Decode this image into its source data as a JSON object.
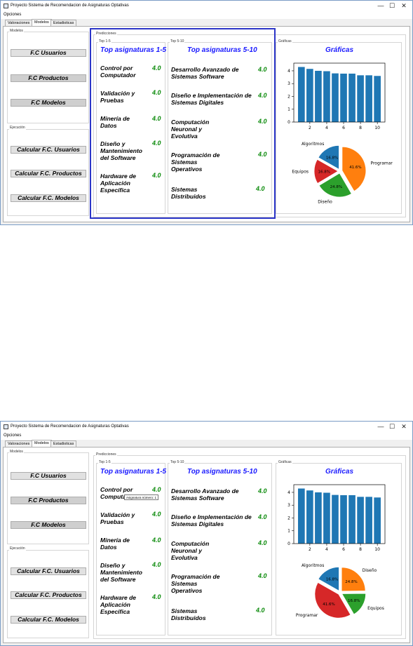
{
  "window": {
    "title": "Proyecto Sistema de Recomendacion de Asignaturas Optativas",
    "menu": "Opciones",
    "minimize": "—",
    "maximize": "☐",
    "close": "✕"
  },
  "tabs": [
    "Valoraciones",
    "Modelos",
    "Estadisticas"
  ],
  "modelos": {
    "label": "Modelos",
    "buttons": [
      "F.C Usuarios",
      "F.C Productos",
      "F.C Modelos"
    ]
  },
  "ejecucion": {
    "label": "Ejecución",
    "buttons": [
      "Calcular F.C. Usuarios",
      "Calcular F.C. Productos",
      "Calcular F.C. Modelos"
    ]
  },
  "predicciones": {
    "label": "Predicciones",
    "top1": {
      "label": "Top 1-5",
      "header": "Top asignaturas 1-5",
      "items": [
        {
          "name": "Control por Computador",
          "score": "4.0"
        },
        {
          "name": "Validación y Pruebas",
          "score": "4.0"
        },
        {
          "name": "Minería de Datos",
          "score": "4.0"
        },
        {
          "name": "Diseño y Mantenimiento del Software",
          "score": "4.0"
        },
        {
          "name": "Hardware de Aplicación Específica",
          "score": "4.0"
        }
      ]
    },
    "top2": {
      "label": "Top 5-10",
      "header": "Top asignaturas 5-10",
      "items": [
        {
          "name": "Desarrollo Avanzado de Sistemas Software",
          "score": "4.0"
        },
        {
          "name": "Diseño e Implementación de Sistemas Digitales",
          "score": "4.0"
        },
        {
          "name": "Computación Neuronal y Evolutiva",
          "score": "4.0"
        },
        {
          "name": "Programación de Sistemas Operativos",
          "score": "4.0"
        },
        {
          "name": "Sistemas Distribuidos",
          "score": "4.0"
        }
      ]
    }
  },
  "graficas": {
    "label": "Gráficas",
    "header": "Gráficas"
  },
  "tooltip": "Asignatura número: 1",
  "colors": {
    "accent": "#1a1aff",
    "score": "#0a8a0a",
    "highlight": "#2b35c8",
    "bar": "#1f77b4"
  },
  "chart_data": [
    {
      "type": "bar",
      "x": [
        1,
        2,
        3,
        4,
        5,
        6,
        7,
        8,
        9,
        10
      ],
      "values": [
        4.3,
        4.15,
        4.0,
        3.97,
        3.8,
        3.78,
        3.78,
        3.65,
        3.65,
        3.6
      ],
      "xticks": [
        "2",
        "4",
        "6",
        "8",
        "10"
      ],
      "yticks": [
        "0",
        "1",
        "2",
        "3",
        "4"
      ],
      "ylim": [
        0,
        4.6
      ],
      "title": "",
      "xlabel": "",
      "ylabel": ""
    },
    {
      "type": "pie",
      "labels": [
        "Algoritmos",
        "Equipos",
        "Diseño",
        "Programar"
      ],
      "values": [
        16.8,
        16.8,
        24.8,
        41.6
      ],
      "pct_labels": [
        "16.8%",
        "16.8%",
        "24.8%",
        "41.6%"
      ],
      "colors": [
        "#1f77b4",
        "#d62728",
        "#2ca02c",
        "#ff7f0e"
      ]
    },
    {
      "type": "pie",
      "labels": [
        "Algoritmos",
        "Programar",
        "Equipos",
        "Diseño"
      ],
      "values": [
        16.8,
        41.6,
        16.8,
        24.8
      ],
      "pct_labels": [
        "16.8%",
        "41.6%",
        "16.8%",
        "24.8%"
      ],
      "colors": [
        "#1f77b4",
        "#d62728",
        "#2ca02c",
        "#ff7f0e"
      ]
    }
  ]
}
